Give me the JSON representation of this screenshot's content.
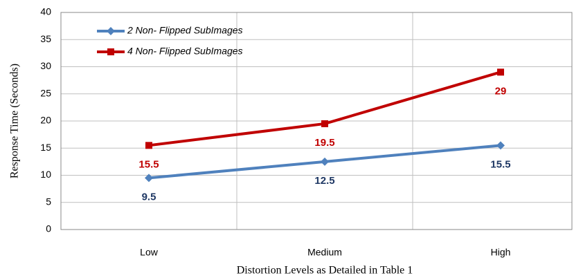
{
  "chart_data": {
    "type": "line",
    "x_label": "Distortion Levels as Detailed in Table 1",
    "y_label": "Response Time (Seconds)",
    "categories": [
      "Low",
      "Medium",
      "High"
    ],
    "series": [
      {
        "name": "2 Non- Flipped SubImages",
        "color": "#4f81bd",
        "label_color": "#1f3864",
        "marker": "diamond",
        "values": [
          9.5,
          12.5,
          15.5
        ]
      },
      {
        "name": "4 Non- Flipped SubImages",
        "color": "#c00000",
        "label_color": "#c00000",
        "marker": "square",
        "values": [
          15.5,
          19.5,
          29
        ]
      }
    ],
    "ylim": [
      0,
      40
    ],
    "yticks": [
      0,
      5,
      10,
      15,
      20,
      25,
      30,
      35,
      40
    ],
    "grid": true
  }
}
